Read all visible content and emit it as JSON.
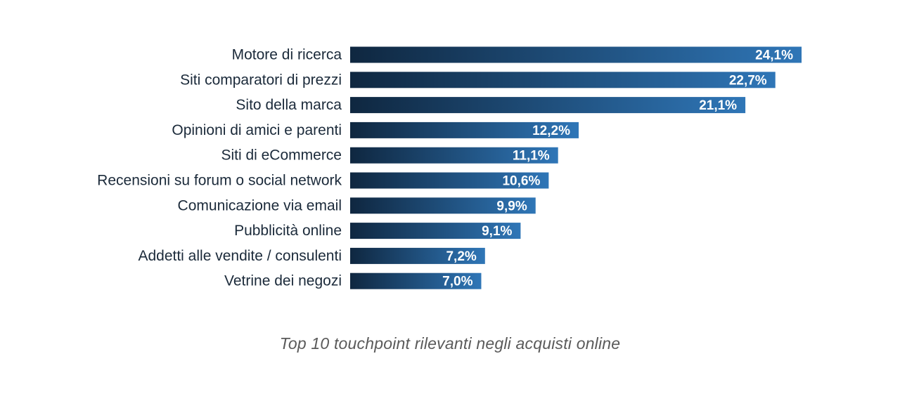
{
  "chart_data": {
    "type": "bar",
    "orientation": "horizontal",
    "title": "",
    "caption": "Top 10 touchpoint rilevanti negli acquisti online",
    "xlabel": "",
    "ylabel": "",
    "xlim": [
      0,
      24.1
    ],
    "grid": false,
    "legend": "none",
    "categories": [
      "Motore di ricerca",
      "Siti comparatori di prezzi",
      "Sito della marca",
      "Opinioni di amici e parenti",
      "Siti di eCommerce",
      "Recensioni su forum o social network",
      "Comunicazione via email",
      "Pubblicità online",
      "Addetti alle vendite / consulenti",
      "Vetrine dei negozi"
    ],
    "values": [
      24.1,
      22.7,
      21.1,
      12.2,
      11.1,
      10.6,
      9.9,
      9.1,
      7.2,
      7.0
    ],
    "value_labels": [
      "24,1%",
      "22,7%",
      "21,1%",
      "12,2%",
      "11,1%",
      "10,6%",
      "9,9%",
      "9,1%",
      "7,2%",
      "7,0%"
    ],
    "colors": {
      "bar_start": "#0f2740",
      "bar_end": "#2f76b7",
      "label_text": "#1b2a3a",
      "value_text": "#ffffff",
      "caption_text": "#5a5a5a"
    }
  }
}
